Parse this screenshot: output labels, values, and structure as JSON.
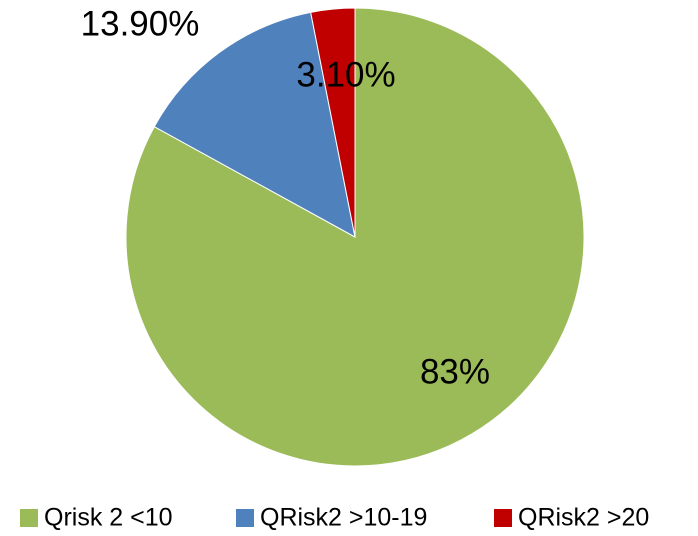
{
  "chart_data": {
    "type": "pie",
    "categories": [
      "Qrisk 2 <10",
      "QRisk2 >10-19",
      "QRisk2 >20"
    ],
    "values": [
      83,
      13.9,
      3.1
    ],
    "value_labels": [
      "83%",
      "13.90%",
      "3.10%"
    ],
    "colors": [
      "#9bbb59",
      "#4f81bd",
      "#c00000"
    ],
    "legend": "bottom"
  }
}
